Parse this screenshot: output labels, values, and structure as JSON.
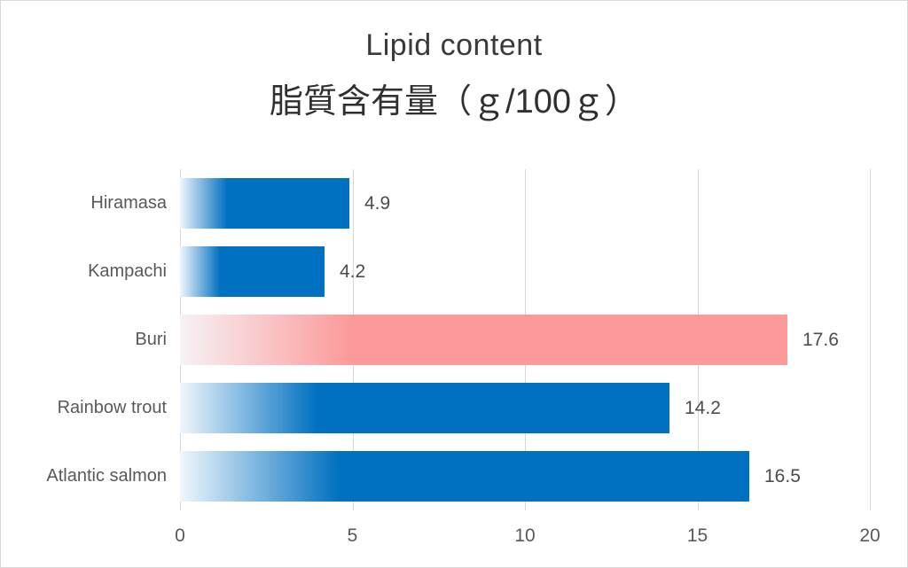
{
  "chart_data": {
    "type": "bar",
    "orientation": "horizontal",
    "title": "Lipid content",
    "subtitle": "脂質含有量（ｇ/100ｇ）",
    "categories": [
      "Hiramasa",
      "Kampachi",
      "Buri",
      "Rainbow trout",
      "Atlantic salmon"
    ],
    "values": [
      4.9,
      4.2,
      17.6,
      14.2,
      16.5
    ],
    "data_labels": [
      "4.9",
      "4.2",
      "17.6",
      "14.2",
      "16.5"
    ],
    "xlim": [
      0,
      20
    ],
    "x_ticks": [
      "0",
      "5",
      "10",
      "15",
      "20"
    ],
    "grid": true,
    "legend": false,
    "bar_colors": [
      "#0070C0",
      "#0070C0",
      "#FC9A9A",
      "#0070C0",
      "#0070C0"
    ],
    "bar_gradient_starts": [
      "#F0F6FC",
      "#F0F6FC",
      "#F6F2F5",
      "#F0F6FC",
      "#F0F6FC"
    ],
    "bar_gradient_solid_at": "28%",
    "colors": {
      "title": "#3A3A3A",
      "subtitle": "#303030",
      "gridline": "#D9D9D9",
      "category_label": "#595959",
      "tick_label": "#595959",
      "value_label": "#4C4C4C",
      "border": "#D9D9D9",
      "background": "#FFFFFF"
    }
  }
}
